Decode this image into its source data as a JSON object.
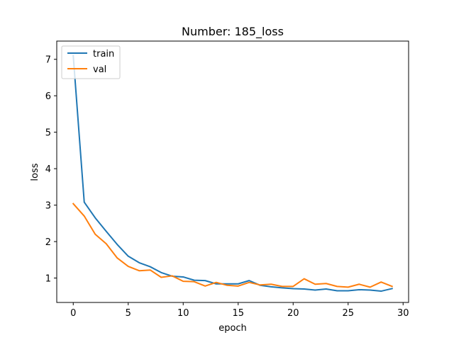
{
  "chart_data": {
    "type": "line",
    "title": "Number: 185_loss",
    "xlabel": "epoch",
    "ylabel": "loss",
    "xlim": [
      -1.5,
      30.5
    ],
    "ylim": [
      0.33,
      7.5
    ],
    "xticks": [
      0,
      5,
      10,
      15,
      20,
      25,
      30
    ],
    "yticks": [
      1,
      2,
      3,
      4,
      5,
      6,
      7
    ],
    "grid": false,
    "legend_position": "top-left",
    "x": [
      0,
      1,
      2,
      3,
      4,
      5,
      6,
      7,
      8,
      9,
      10,
      11,
      12,
      13,
      14,
      15,
      16,
      17,
      18,
      19,
      20,
      21,
      22,
      23,
      24,
      25,
      26,
      27,
      28,
      29
    ],
    "series": [
      {
        "name": "train",
        "color": "#1f77b4",
        "values": [
          7.1,
          3.08,
          2.65,
          2.28,
          1.92,
          1.6,
          1.42,
          1.31,
          1.15,
          1.05,
          1.03,
          0.94,
          0.93,
          0.84,
          0.84,
          0.84,
          0.93,
          0.8,
          0.76,
          0.73,
          0.71,
          0.7,
          0.67,
          0.7,
          0.65,
          0.65,
          0.68,
          0.67,
          0.64,
          0.71
        ]
      },
      {
        "name": "val",
        "color": "#ff7f0e",
        "values": [
          3.04,
          2.7,
          2.2,
          1.94,
          1.55,
          1.32,
          1.2,
          1.22,
          1.02,
          1.06,
          0.91,
          0.9,
          0.78,
          0.88,
          0.8,
          0.78,
          0.88,
          0.81,
          0.83,
          0.77,
          0.77,
          0.98,
          0.83,
          0.85,
          0.77,
          0.75,
          0.83,
          0.75,
          0.89,
          0.77
        ]
      }
    ]
  }
}
